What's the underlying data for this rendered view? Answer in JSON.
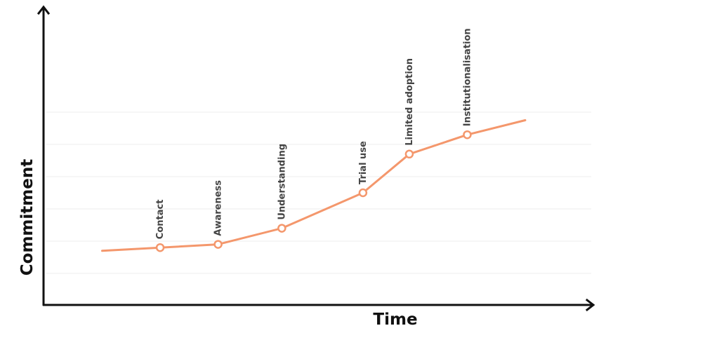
{
  "chart_data": {
    "type": "line",
    "title": "",
    "xlabel": "Time",
    "ylabel": "Commitment",
    "grid": true,
    "x": [
      0,
      1,
      2,
      3,
      4,
      5,
      6,
      7,
      8
    ],
    "points": [
      {
        "x": 0.0,
        "y": 1.2,
        "label": "",
        "marker": false
      },
      {
        "x": 1.0,
        "y": 1.3,
        "label": "Contact",
        "marker": true
      },
      {
        "x": 2.0,
        "y": 1.4,
        "label": "Awareness",
        "marker": true
      },
      {
        "x": 3.1,
        "y": 1.9,
        "label": "Understanding",
        "marker": true
      },
      {
        "x": 4.5,
        "y": 3.0,
        "label": "Trial use",
        "marker": true
      },
      {
        "x": 5.3,
        "y": 4.2,
        "label": "Limited adoption",
        "marker": true
      },
      {
        "x": 6.3,
        "y": 4.8,
        "label": "Institutionalisation",
        "marker": true
      },
      {
        "x": 7.3,
        "y": 5.25,
        "label": "",
        "marker": false
      }
    ],
    "xlim": [
      -1,
      8.5
    ],
    "ylim": [
      -0.5,
      8
    ],
    "gridlines_y": [
      0.5,
      1.5,
      2.5,
      3.5,
      4.5,
      5.5
    ],
    "colors": {
      "series": "#f4976c",
      "axis": "#111111",
      "grid": "#eeeeee",
      "label": "#444444"
    }
  }
}
